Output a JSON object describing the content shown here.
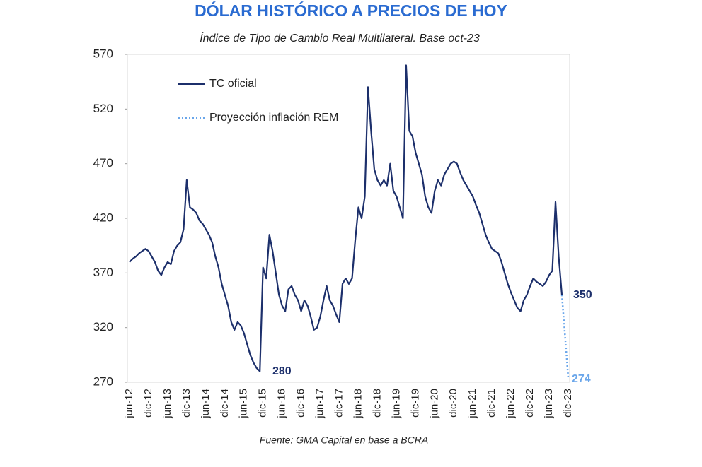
{
  "chart_data": {
    "type": "line",
    "title": "DÓLAR HISTÓRICO A PRECIOS DE HOY",
    "subtitle": "Índice de Tipo de Cambio Real Multilateral. Base oct-23",
    "source": "Fuente: GMA Capital en base a BCRA",
    "annotations": [
      "280",
      "350",
      "274"
    ],
    "categories": [
      "jun-12",
      null,
      null,
      null,
      null,
      null,
      "dic-12",
      null,
      null,
      null,
      null,
      null,
      "jun-13",
      null,
      null,
      null,
      null,
      null,
      "dic-13",
      null,
      null,
      null,
      null,
      null,
      "jun-14",
      null,
      null,
      null,
      null,
      null,
      "dic-14",
      null,
      null,
      null,
      null,
      null,
      "jun-15",
      null,
      null,
      null,
      null,
      null,
      "dic-15",
      null,
      null,
      null,
      null,
      null,
      "jun-16",
      null,
      null,
      null,
      null,
      null,
      "dic-16",
      null,
      null,
      null,
      null,
      null,
      "jun-17",
      null,
      null,
      null,
      null,
      null,
      "dic-17",
      null,
      null,
      null,
      null,
      null,
      "jun-18",
      null,
      null,
      null,
      null,
      null,
      "dic-18",
      null,
      null,
      null,
      null,
      null,
      "jun-19",
      null,
      null,
      null,
      null,
      null,
      "dic-19",
      null,
      null,
      null,
      null,
      null,
      "jun-20",
      null,
      null,
      null,
      null,
      null,
      "dic-20",
      null,
      null,
      null,
      null,
      null,
      "jun-21",
      null,
      null,
      null,
      null,
      null,
      "dic-21",
      null,
      null,
      null,
      null,
      null,
      "jun-22",
      null,
      null,
      null,
      null,
      null,
      "dic-22",
      null,
      null,
      null,
      null,
      null,
      "jun-23",
      null,
      null,
      null,
      null,
      null,
      "dic-23"
    ],
    "series": [
      {
        "name": "TC oficial",
        "color": "#1c2f6b",
        "style": "solid",
        "values": [
          380,
          383,
          385,
          388,
          390,
          392,
          390,
          385,
          380,
          372,
          368,
          375,
          380,
          378,
          390,
          395,
          398,
          410,
          455,
          430,
          428,
          425,
          418,
          415,
          410,
          405,
          398,
          385,
          375,
          360,
          350,
          340,
          325,
          318,
          325,
          322,
          315,
          305,
          295,
          288,
          283,
          280,
          375,
          365,
          405,
          390,
          370,
          350,
          340,
          335,
          355,
          358,
          350,
          345,
          335,
          345,
          340,
          330,
          318,
          320,
          330,
          345,
          358,
          345,
          340,
          332,
          325,
          360,
          365,
          360,
          365,
          400,
          430,
          420,
          440,
          540,
          500,
          465,
          455,
          450,
          455,
          450,
          470,
          445,
          440,
          430,
          420,
          560,
          500,
          495,
          480,
          470,
          460,
          440,
          430,
          425,
          445,
          455,
          450,
          460,
          465,
          470,
          472,
          470,
          462,
          455,
          450,
          445,
          440,
          432,
          425,
          415,
          405,
          398,
          392,
          390,
          388,
          380,
          370,
          360,
          352,
          345,
          338,
          335,
          345,
          350,
          358,
          365,
          362,
          360,
          358,
          362,
          368,
          372,
          435,
          385,
          350,
          null,
          null
        ]
      },
      {
        "name": "Proyección inflación REM",
        "color": "#6aa6ea",
        "style": "dotted",
        "values": [
          null,
          null,
          null,
          null,
          null,
          null,
          null,
          null,
          null,
          null,
          null,
          null,
          null,
          null,
          null,
          null,
          null,
          null,
          null,
          null,
          null,
          null,
          null,
          null,
          null,
          null,
          null,
          null,
          null,
          null,
          null,
          null,
          null,
          null,
          null,
          null,
          null,
          null,
          null,
          null,
          null,
          null,
          null,
          null,
          null,
          null,
          null,
          null,
          null,
          null,
          null,
          null,
          null,
          null,
          null,
          null,
          null,
          null,
          null,
          null,
          null,
          null,
          null,
          null,
          null,
          null,
          null,
          null,
          null,
          null,
          null,
          null,
          null,
          null,
          null,
          null,
          null,
          null,
          null,
          null,
          null,
          null,
          null,
          null,
          null,
          null,
          null,
          null,
          null,
          null,
          null,
          null,
          null,
          null,
          null,
          null,
          null,
          null,
          null,
          null,
          null,
          null,
          null,
          null,
          null,
          null,
          null,
          null,
          null,
          null,
          null,
          null,
          null,
          null,
          null,
          null,
          null,
          null,
          null,
          null,
          null,
          null,
          null,
          null,
          null,
          null,
          null,
          null,
          null,
          null,
          null,
          null,
          null,
          null,
          null,
          null,
          350,
          312,
          274
        ]
      }
    ],
    "ylim": [
      270,
      570
    ],
    "yticks": [
      270,
      320,
      370,
      420,
      470,
      520,
      570
    ],
    "grid": false
  }
}
